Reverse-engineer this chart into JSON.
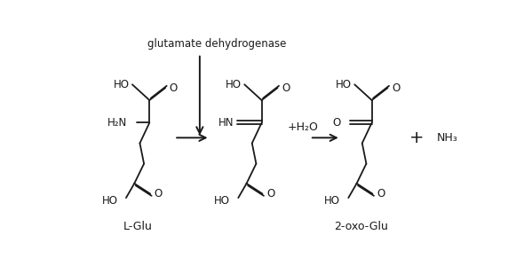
{
  "bg_color": "#ffffff",
  "line_color": "#1a1a1a",
  "enzyme_label": "glutamate dehydrogenase",
  "label_lglu": "L-Glu",
  "label_2oxo": "2-oxo-Glu"
}
